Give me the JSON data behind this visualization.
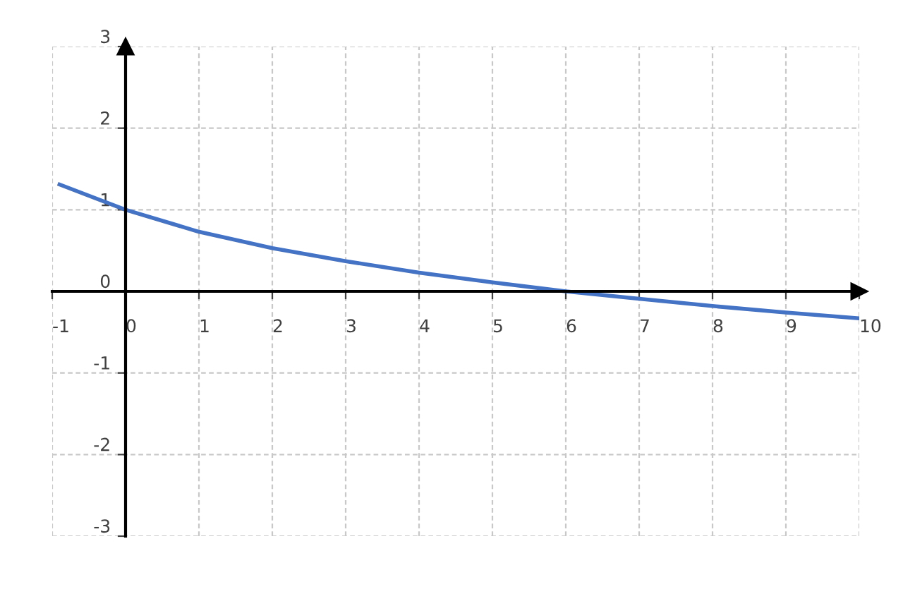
{
  "chart_data": {
    "type": "line",
    "x": [
      -0.9,
      0,
      1,
      2,
      3,
      4,
      5,
      6,
      7,
      8,
      9,
      10
    ],
    "series": [
      {
        "color": "#4472c4",
        "values": [
          1.31,
          1.0,
          0.73,
          0.53,
          0.37,
          0.23,
          0.11,
          0.0,
          -0.09,
          -0.18,
          -0.26,
          -0.33
        ]
      }
    ],
    "xlim": [
      -1,
      10
    ],
    "ylim": [
      -3,
      3
    ],
    "xticks": [
      -1,
      0,
      1,
      2,
      3,
      4,
      5,
      6,
      7,
      8,
      9,
      10
    ],
    "yticks": [
      -3,
      -2,
      -1,
      0,
      1,
      2,
      3
    ],
    "grid": true,
    "marker": "none",
    "line_style": "solid"
  }
}
